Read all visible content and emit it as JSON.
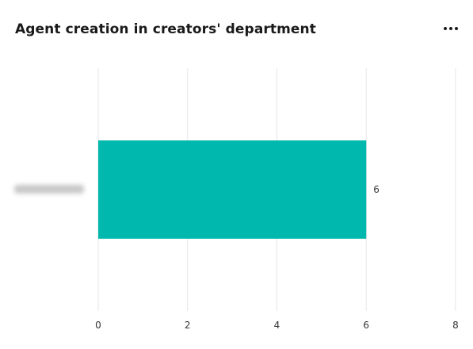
{
  "header": {
    "title": "Agent creation in creators' department",
    "menu_icon": "more-horizontal-icon"
  },
  "chart_data": {
    "type": "bar",
    "orientation": "horizontal",
    "categories": [
      ""
    ],
    "category_label_obscured": true,
    "values": [
      6
    ],
    "xlim": [
      0,
      8
    ],
    "x_ticks": [
      "0",
      "2",
      "4",
      "6",
      "8"
    ],
    "data_labels": [
      "6"
    ],
    "grid": true,
    "bar_color": "#00b8ad",
    "grid_color": "#e6e6e6"
  }
}
